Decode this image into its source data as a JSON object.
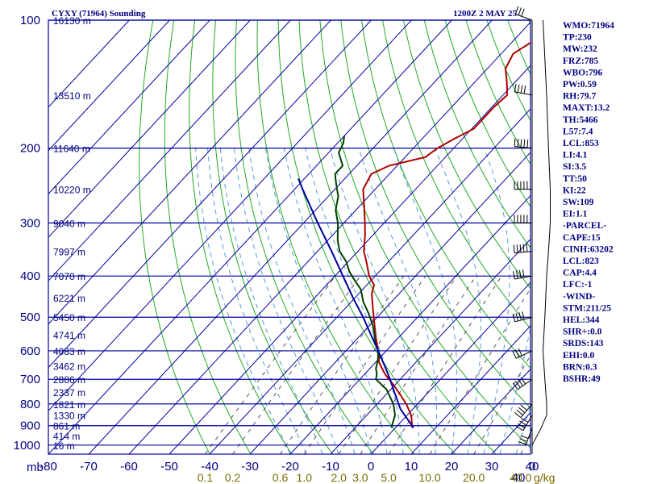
{
  "chart_data": {
    "type": "line",
    "title": "CYXY (71964) Sounding",
    "time_label": "1200Z  2 MAY 25",
    "pressure_unit": "mb",
    "mixing_ratio_unit": "g/kg",
    "pressure_levels": [
      100,
      200,
      300,
      400,
      500,
      600,
      700,
      800,
      900,
      1000
    ],
    "height_labels": [
      {
        "p": 100,
        "text": "16130 m"
      },
      {
        "p": 150,
        "text": "13510 m"
      },
      {
        "p": 200,
        "text": "11640 m"
      },
      {
        "p": 250,
        "text": "10220 m"
      },
      {
        "p": 300,
        "text": "9040 m"
      },
      {
        "p": 350,
        "text": "7997 m"
      },
      {
        "p": 400,
        "text": "7070 m"
      },
      {
        "p": 450,
        "text": "6221 m"
      },
      {
        "p": 500,
        "text": "5450 m"
      },
      {
        "p": 550,
        "text": "4741 m"
      },
      {
        "p": 600,
        "text": "4083 m"
      },
      {
        "p": 650,
        "text": "3462 m"
      },
      {
        "p": 700,
        "text": "2886 m"
      },
      {
        "p": 750,
        "text": "2337 m"
      },
      {
        "p": 800,
        "text": "1821 m"
      },
      {
        "p": 850,
        "text": "1330 m"
      },
      {
        "p": 900,
        "text": "861 m"
      },
      {
        "p": 950,
        "text": "414 m"
      },
      {
        "p": 1000,
        "text": "16 m"
      }
    ],
    "temperature_ticks": [
      "-80",
      "-70",
      "-60",
      "-50",
      "-40",
      "-30",
      "-20",
      "-10",
      "0",
      "10",
      "20",
      "30",
      "40"
    ],
    "temperature_tick_values": [
      -80,
      -70,
      -60,
      -50,
      -40,
      -30,
      -20,
      -10,
      0,
      10,
      20,
      30,
      40
    ],
    "mixing_ratio_labels": [
      "0.1",
      "0.2",
      "0.6",
      "1.0",
      "2.0",
      "3.0",
      "5.0",
      "10.0",
      "20.0",
      "40.0"
    ],
    "mixing_ratio_values": [
      0.1,
      0.2,
      0.6,
      1.0,
      2.0,
      3.0,
      5.0,
      10.0,
      20.0,
      40.0
    ],
    "wind_speed_ticks": [
      "0",
      "40"
    ],
    "series": [
      {
        "name": "Temperature",
        "color": "#b00000",
        "points": [
          [
            910,
            4.2
          ],
          [
            850,
            1.0
          ],
          [
            800,
            -2.8
          ],
          [
            760,
            -6.5
          ],
          [
            720,
            -10.5
          ],
          [
            680,
            -15.0
          ],
          [
            640,
            -19.0
          ],
          [
            600,
            -22.0
          ],
          [
            560,
            -25.5
          ],
          [
            520,
            -29.0
          ],
          [
            480,
            -32.8
          ],
          [
            440,
            -36.8
          ],
          [
            420,
            -38.2
          ],
          [
            400,
            -41.5
          ],
          [
            370,
            -45.5
          ],
          [
            350,
            -48.5
          ],
          [
            320,
            -52.0
          ],
          [
            300,
            -54.8
          ],
          [
            270,
            -59.5
          ],
          [
            250,
            -63.0
          ],
          [
            230,
            -64.5
          ],
          [
            220,
            -62.0
          ],
          [
            210,
            -55.0
          ],
          [
            200,
            -54.0
          ],
          [
            190,
            -52.0
          ],
          [
            180,
            -49.5
          ],
          [
            170,
            -49.5
          ],
          [
            160,
            -49.5
          ],
          [
            150,
            -49.0
          ],
          [
            140,
            -52.0
          ],
          [
            130,
            -55.5
          ],
          [
            120,
            -57.0
          ],
          [
            110,
            -54.5
          ],
          [
            103,
            -58.0
          ],
          [
            100,
            -59.5
          ]
        ]
      },
      {
        "name": "Dewpoint",
        "color": "#004000",
        "points": [
          [
            910,
            -1.0
          ],
          [
            850,
            -3.0
          ],
          [
            800,
            -6.0
          ],
          [
            740,
            -11.0
          ],
          [
            700,
            -16.0
          ],
          [
            680,
            -17.0
          ],
          [
            660,
            -18.5
          ],
          [
            630,
            -20.0
          ],
          [
            600,
            -22.0
          ],
          [
            570,
            -25.0
          ],
          [
            540,
            -27.5
          ],
          [
            520,
            -29.5
          ],
          [
            490,
            -33.0
          ],
          [
            460,
            -37.0
          ],
          [
            430,
            -40.5
          ],
          [
            410,
            -44.0
          ],
          [
            390,
            -47.5
          ],
          [
            370,
            -50.5
          ],
          [
            350,
            -54.5
          ],
          [
            330,
            -57.5
          ],
          [
            300,
            -61.5
          ],
          [
            280,
            -65.0
          ],
          [
            260,
            -67.5
          ],
          [
            240,
            -71.5
          ],
          [
            230,
            -73.5
          ],
          [
            220,
            -73.5
          ],
          [
            205,
            -77.5
          ],
          [
            195,
            -78.5
          ],
          [
            187,
            -80.0
          ]
        ]
      },
      {
        "name": "Parcel",
        "color": "#0000a0",
        "points": [
          [
            910,
            4.5
          ],
          [
            823,
            -3.0
          ],
          [
            750,
            -8.5
          ],
          [
            700,
            -12.5
          ],
          [
            650,
            -17.0
          ],
          [
            600,
            -22.0
          ],
          [
            550,
            -27.5
          ],
          [
            500,
            -33.5
          ],
          [
            450,
            -40.5
          ],
          [
            400,
            -48.0
          ],
          [
            350,
            -56.5
          ],
          [
            300,
            -66.5
          ],
          [
            250,
            -78.0
          ],
          [
            236,
            -81.5
          ]
        ]
      }
    ],
    "wind_barbs": [
      {
        "p": 910,
        "dir": 200,
        "spd": 25
      },
      {
        "p": 850,
        "dir": 210,
        "spd": 40
      },
      {
        "p": 800,
        "dir": 220,
        "spd": 40
      },
      {
        "p": 700,
        "dir": 235,
        "spd": 35
      },
      {
        "p": 600,
        "dir": 245,
        "spd": 30
      },
      {
        "p": 500,
        "dir": 255,
        "spd": 35
      },
      {
        "p": 400,
        "dir": 260,
        "spd": 40
      },
      {
        "p": 350,
        "dir": 265,
        "spd": 45
      },
      {
        "p": 300,
        "dir": 270,
        "spd": 50
      },
      {
        "p": 250,
        "dir": 270,
        "spd": 50
      },
      {
        "p": 200,
        "dir": 275,
        "spd": 45
      },
      {
        "p": 150,
        "dir": 280,
        "spd": 40
      },
      {
        "p": 100,
        "dir": 290,
        "spd": 30
      }
    ]
  },
  "indices": [
    "WMO:71964",
    "TP:230",
    "MW:232",
    "FRZ:785",
    "WBO:796",
    "PW:0.59",
    "RH:79.7",
    "MAXT:13.2",
    "TH:5466",
    "L57:7.4",
    "LCL:853",
    "LI:4.1",
    "SI:3.5",
    "TT:50",
    "KI:22",
    "SW:109",
    "EI:1.1",
    "-PARCEL-",
    "CAPE:15",
    "CINH:63202",
    "LCL:823",
    "CAP:4.4",
    "LFC:-1",
    "-WIND-",
    "STM:211/25",
    "HEL:344",
    "SHR+:0.0",
    "SRDS:143",
    "EHI:0.0",
    "BRN:0.3",
    "BSHR:49"
  ]
}
